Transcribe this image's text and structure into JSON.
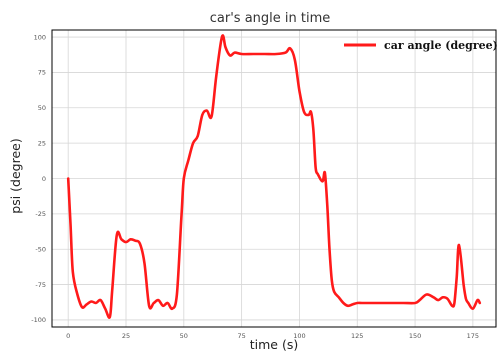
{
  "chart_data": {
    "type": "line",
    "title": "car's angle in time",
    "xlabel": "time (s)",
    "ylabel": "psi (degree)",
    "xlim": [
      -7,
      185
    ],
    "ylim": [
      -105,
      105
    ],
    "xticks": [
      0,
      25,
      50,
      75,
      100,
      125,
      150,
      175
    ],
    "yticks": [
      100,
      75,
      50,
      25,
      0,
      -25,
      -50,
      -75,
      -100
    ],
    "grid": true,
    "legend": "top-right",
    "colors": {
      "line": "#ff1a1a",
      "frame": "#000000",
      "grid": "#d6d6d6"
    },
    "series": [
      {
        "name": "car angle (degree)",
        "x": [
          0,
          1,
          2,
          4,
          6,
          8,
          10,
          12,
          14,
          16,
          18,
          19,
          21,
          23,
          25,
          27,
          29,
          31,
          33,
          35,
          37,
          39,
          41,
          43,
          45,
          47,
          49,
          50,
          52,
          54,
          56,
          58,
          60,
          62,
          64,
          66,
          67,
          68,
          70,
          72,
          75,
          80,
          85,
          90,
          94,
          96,
          98,
          100,
          102,
          104,
          105,
          106,
          107,
          108,
          110,
          111,
          112,
          113,
          114,
          115,
          117,
          119,
          121,
          123,
          125,
          127,
          130,
          135,
          140,
          145,
          150,
          152,
          155,
          158,
          160,
          162,
          164,
          166,
          167,
          168,
          169,
          171,
          172,
          173,
          175,
          177,
          178
        ],
        "y": [
          0,
          -32,
          -66,
          -82,
          -91,
          -89,
          -87,
          -88,
          -86,
          -92,
          -98,
          -80,
          -40,
          -43,
          -45,
          -43,
          -44,
          -46,
          -60,
          -90,
          -88,
          -86,
          -90,
          -88,
          -92,
          -82,
          -26,
          0,
          13,
          25,
          30,
          45,
          48,
          44,
          72,
          96,
          101,
          93,
          87,
          89,
          88,
          88,
          88,
          88,
          89,
          92,
          84,
          62,
          47,
          45,
          47,
          35,
          8,
          3,
          -2,
          4,
          -18,
          -50,
          -72,
          -80,
          -84,
          -88,
          -90,
          -89,
          -88,
          -88,
          -88,
          -88,
          -88,
          -88,
          -88,
          -86,
          -82,
          -84,
          -86,
          -84,
          -85,
          -90,
          -88,
          -70,
          -47,
          -75,
          -85,
          -88,
          -92,
          -86,
          -88
        ]
      }
    ]
  }
}
